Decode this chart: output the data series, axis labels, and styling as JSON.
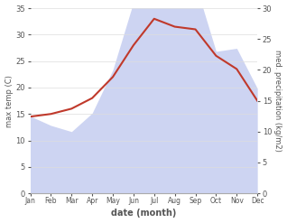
{
  "months": [
    "Jan",
    "Feb",
    "Mar",
    "Apr",
    "May",
    "Jun",
    "Jul",
    "Aug",
    "Sep",
    "Oct",
    "Nov",
    "Dec"
  ],
  "temperature": [
    14.5,
    15.0,
    16.0,
    18.0,
    22.0,
    28.0,
    33.0,
    31.5,
    31.0,
    26.0,
    23.5,
    17.5
  ],
  "precipitation": [
    12.5,
    11.0,
    10.0,
    13.0,
    20.0,
    31.0,
    32.0,
    34.0,
    34.0,
    23.0,
    23.5,
    17.0
  ],
  "temp_color": "#c0392b",
  "precip_fill_color": "#c5cdf0",
  "temp_ylim": [
    0,
    35
  ],
  "precip_ylim": [
    0,
    30
  ],
  "temp_yticks": [
    0,
    5,
    10,
    15,
    20,
    25,
    30,
    35
  ],
  "precip_yticks": [
    0,
    5,
    10,
    15,
    20,
    25,
    30
  ],
  "xlabel": "date (month)",
  "ylabel_left": "max temp (C)",
  "ylabel_right": "med. precipitation (kg/m2)",
  "background_color": "#ffffff",
  "grid_color": "#dddddd",
  "line_width": 1.5,
  "fill_alpha": 0.85,
  "tick_color": "#555555",
  "label_color": "#555555"
}
